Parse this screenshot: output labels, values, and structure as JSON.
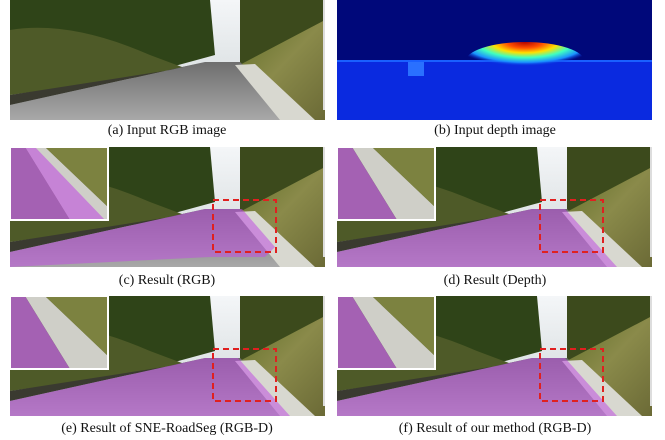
{
  "panels": [
    {
      "caption": "(a) Input RGB image"
    },
    {
      "caption": "(b) Input depth image"
    },
    {
      "caption": "(c) Result (RGB)"
    },
    {
      "caption": "(d) Result (Depth)"
    },
    {
      "caption": "(e) Result of SNE-RoadSeg (RGB-D)"
    },
    {
      "caption": "(f) Result of our method (RGB-D)"
    }
  ]
}
